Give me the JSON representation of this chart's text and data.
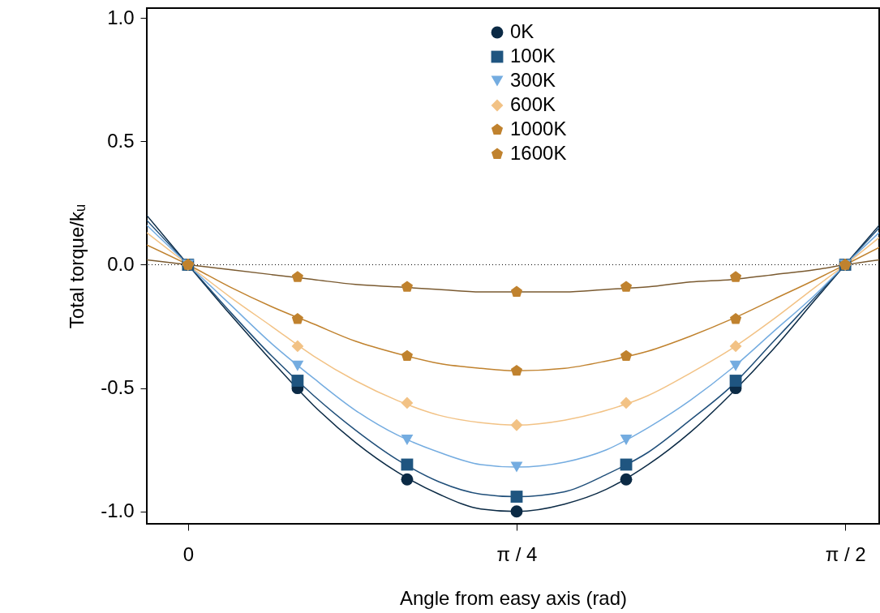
{
  "chart_data": {
    "type": "scatter",
    "xlabel": "Angle from easy axis (rad)",
    "ylabel": "Total torque/kᵤ",
    "xlim": [
      -0.0986,
      1.652
    ],
    "ylim": [
      -1.05,
      1.04
    ],
    "xticks": [
      {
        "value": 0,
        "label": "0"
      },
      {
        "value": 0.7854,
        "label": "π / 4"
      },
      {
        "value": 1.5708,
        "label": "π / 2"
      }
    ],
    "yticks": [
      {
        "value": -1,
        "label": "-1.0"
      },
      {
        "value": -0.5,
        "label": "-0.5"
      },
      {
        "value": 0,
        "label": "0.0"
      },
      {
        "value": 0.5,
        "label": "0.5"
      },
      {
        "value": 1,
        "label": "1.0"
      }
    ],
    "grid": false,
    "legend": "top",
    "ref_lines": [
      {
        "axis": "y",
        "value": 0,
        "line_style": "dotted",
        "color": "#000000"
      }
    ],
    "x": [
      0,
      0.2618,
      0.5236,
      0.7854,
      1.0472,
      1.309,
      1.5708
    ],
    "series": [
      {
        "type": "line",
        "color": "#0b2a45",
        "x": [
          -0.0986,
          0,
          0.1,
          0.2,
          0.3,
          0.4,
          0.5,
          0.6,
          0.7,
          0.7854,
          0.9,
          1.0,
          1.1,
          1.2,
          1.3,
          1.4,
          1.5,
          1.5708,
          1.652
        ],
        "values": [
          0.2,
          0,
          -0.2,
          -0.39,
          -0.57,
          -0.72,
          -0.84,
          -0.93,
          -0.99,
          -1.0,
          -0.97,
          -0.91,
          -0.81,
          -0.68,
          -0.52,
          -0.34,
          -0.14,
          0,
          0.16
        ]
      },
      {
        "type": "line",
        "color": "#1f4e79",
        "x": [
          -0.0986,
          0,
          0.1,
          0.2,
          0.3,
          0.4,
          0.5,
          0.6,
          0.7,
          0.7854,
          0.9,
          1.0,
          1.1,
          1.2,
          1.3,
          1.4,
          1.5,
          1.5708,
          1.652
        ],
        "values": [
          0.18,
          0,
          -0.19,
          -0.37,
          -0.53,
          -0.67,
          -0.79,
          -0.88,
          -0.93,
          -0.94,
          -0.92,
          -0.85,
          -0.76,
          -0.63,
          -0.49,
          -0.31,
          -0.13,
          0,
          0.15
        ]
      },
      {
        "type": "line",
        "color": "#74ace0",
        "x": [
          -0.0986,
          0,
          0.1,
          0.2,
          0.3,
          0.4,
          0.5,
          0.6,
          0.7,
          0.7854,
          0.9,
          1.0,
          1.1,
          1.2,
          1.3,
          1.4,
          1.5,
          1.5708,
          1.652
        ],
        "values": [
          0.16,
          0,
          -0.16,
          -0.32,
          -0.46,
          -0.59,
          -0.69,
          -0.76,
          -0.81,
          -0.82,
          -0.8,
          -0.75,
          -0.66,
          -0.55,
          -0.42,
          -0.27,
          -0.12,
          0,
          0.13
        ]
      },
      {
        "type": "line",
        "color": "#f2c285",
        "x": [
          -0.0986,
          0,
          0.1,
          0.2,
          0.3,
          0.4,
          0.5,
          0.6,
          0.7,
          0.7854,
          0.9,
          1.0,
          1.1,
          1.2,
          1.3,
          1.4,
          1.5,
          1.5708,
          1.652
        ],
        "values": [
          0.13,
          0,
          -0.13,
          -0.25,
          -0.37,
          -0.47,
          -0.55,
          -0.61,
          -0.64,
          -0.65,
          -0.63,
          -0.59,
          -0.53,
          -0.44,
          -0.34,
          -0.22,
          -0.09,
          0,
          0.11
        ]
      },
      {
        "type": "line",
        "color": "#c0822e",
        "x": [
          -0.0986,
          0,
          0.1,
          0.2,
          0.3,
          0.4,
          0.5,
          0.6,
          0.7,
          0.7854,
          0.9,
          1.0,
          1.1,
          1.2,
          1.3,
          1.4,
          1.5,
          1.5708,
          1.652
        ],
        "values": [
          0.08,
          0,
          -0.09,
          -0.17,
          -0.24,
          -0.31,
          -0.36,
          -0.4,
          -0.42,
          -0.43,
          -0.42,
          -0.39,
          -0.35,
          -0.29,
          -0.22,
          -0.14,
          -0.06,
          0,
          0.07
        ]
      },
      {
        "type": "line",
        "color": "#7a5a30",
        "x": [
          -0.0986,
          0,
          0.1,
          0.2,
          0.3,
          0.4,
          0.5,
          0.6,
          0.7,
          0.7854,
          0.9,
          1.0,
          1.1,
          1.2,
          1.3,
          1.4,
          1.5,
          1.5708,
          1.652
        ],
        "values": [
          0.02,
          0,
          -0.02,
          -0.04,
          -0.06,
          -0.08,
          -0.09,
          -0.1,
          -0.11,
          -0.11,
          -0.11,
          -0.1,
          -0.09,
          -0.07,
          -0.06,
          -0.04,
          -0.02,
          0,
          0.02
        ]
      },
      {
        "type": "scatter",
        "name": "0K",
        "color": "#0b2a45",
        "marker": "circle",
        "values": [
          0,
          -0.5,
          -0.87,
          -1.0,
          -0.87,
          -0.5,
          0
        ]
      },
      {
        "type": "scatter",
        "name": "100K",
        "color": "#1f5580",
        "marker": "square",
        "values": [
          0,
          -0.47,
          -0.81,
          -0.94,
          -0.81,
          -0.47,
          0
        ]
      },
      {
        "type": "scatter",
        "name": "300K",
        "color": "#74ace0",
        "marker": "triangle",
        "values": [
          0,
          -0.41,
          -0.71,
          -0.82,
          -0.71,
          -0.41,
          0
        ]
      },
      {
        "type": "scatter",
        "name": "600K",
        "color": "#f2c285",
        "marker": "diamond",
        "values": [
          0,
          -0.33,
          -0.56,
          -0.65,
          -0.56,
          -0.33,
          0
        ]
      },
      {
        "type": "scatter",
        "name": "1000K",
        "color": "#c0822e",
        "marker": "star",
        "values": [
          0,
          -0.22,
          -0.37,
          -0.43,
          -0.37,
          -0.22,
          0
        ]
      },
      {
        "type": "scatter",
        "name": "1600K",
        "color": "#c0822e",
        "marker": "star",
        "values": [
          0,
          -0.05,
          -0.09,
          -0.11,
          -0.09,
          -0.05,
          0
        ]
      }
    ]
  }
}
